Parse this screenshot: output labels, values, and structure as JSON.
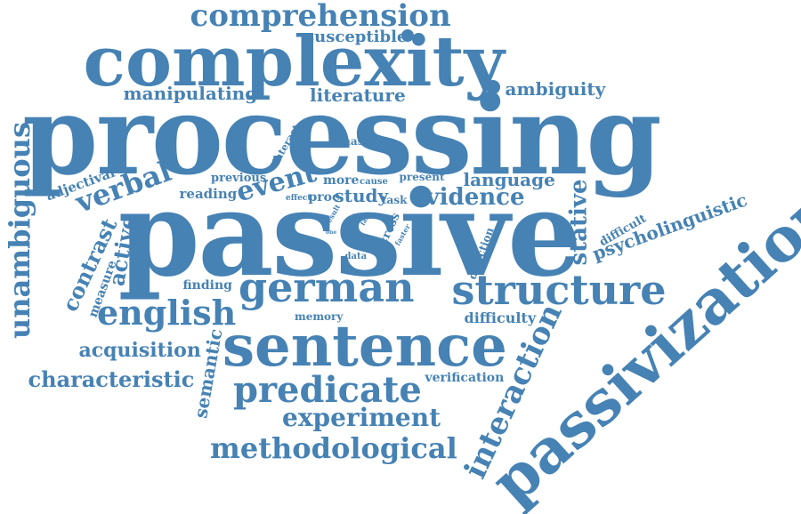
{
  "colors": {
    "word": "#4682b4",
    "background": "#ffffff"
  },
  "words": {
    "comprehension": "comprehension",
    "susceptible": "susceptible",
    "complexity": "complexity",
    "manipulating": "manipulating",
    "literature": "literature",
    "ambiguity": "ambiguity",
    "processing": "processing",
    "unambiguous": "unambiguous",
    "interact": "interact",
    "aphasia": "aphasia",
    "adjectival": "adjectival",
    "verbal": "verbal",
    "previous": "previous",
    "reading": "reading",
    "event": "event",
    "more": "more",
    "cause": "cause",
    "present": "present",
    "language": "language",
    "effect": "effect",
    "proc": "proc",
    "study": "study",
    "task": "task",
    "evidence": "evidence",
    "stative": "stative",
    "difficult": "difficult",
    "psycholinguistic": "psycholinguistic",
    "passivization": "passivization",
    "result": "result",
    "ref": "ref",
    "fast": "fast",
    "one": "one",
    "cross": "cross",
    "faster": "faster",
    "direction": "direction",
    "contrast": "contrast",
    "active": "active",
    "passive": "passive",
    "data": "data",
    "measure": "measure",
    "finding": "finding",
    "german": "german",
    "structure": "structure",
    "english": "english",
    "memory": "memory",
    "difficulty": "difficulty",
    "acquisition": "acquisition",
    "semantic": "semantic",
    "sentence": "sentence",
    "interaction": "interaction",
    "characteristic": "characteristic",
    "predicate": "predicate",
    "verification": "verification",
    "experiment": "experiment",
    "methodological": "methodological"
  }
}
